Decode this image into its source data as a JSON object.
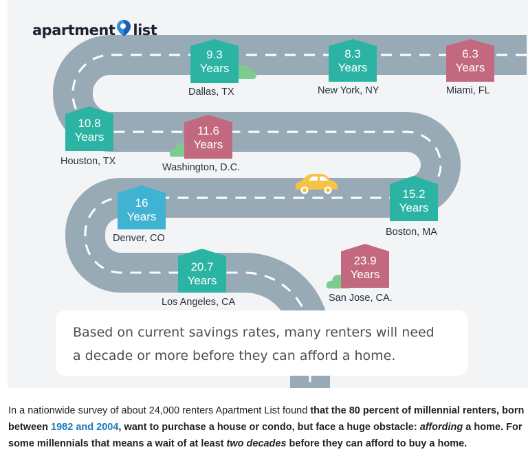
{
  "logo": {
    "left": "apartment",
    "right": "list"
  },
  "colors": {
    "teal": "#2bb3a4",
    "blue": "#40b3d2",
    "pink": "#c2687f",
    "road": "#98aab6",
    "cloud": "#7ccc8f",
    "car": "#f6c344",
    "link": "#1a7bb8"
  },
  "stops": [
    {
      "years": "9.3",
      "unit": "Years",
      "city": "Dallas, TX",
      "color": "teal"
    },
    {
      "years": "8.3",
      "unit": "Years",
      "city": "New York, NY",
      "color": "teal"
    },
    {
      "years": "6.3",
      "unit": "Years",
      "city": "Miami, FL",
      "color": "pink"
    },
    {
      "years": "10.8",
      "unit": "Years",
      "city": "Houston, TX",
      "color": "teal"
    },
    {
      "years": "11.6",
      "unit": "Years",
      "city": "Washington, D.C.",
      "color": "pink"
    },
    {
      "years": "16",
      "unit": "Years",
      "city": "Denver, CO",
      "color": "blue"
    },
    {
      "years": "15.2",
      "unit": "Years",
      "city": "Boston, MA",
      "color": "teal"
    },
    {
      "years": "20.7",
      "unit": "Years",
      "city": "Los Angeles, CA",
      "color": "teal"
    },
    {
      "years": "23.9",
      "unit": "Years",
      "city": "San Jose, CA.",
      "color": "pink"
    }
  ],
  "note": {
    "line1": "Based on current savings rates, many renters will need",
    "line2": "a decade or more before they can afford a home."
  },
  "caption": {
    "t1": "In a nationwide survey of about 24,000 renters Apartment List found ",
    "b1": "that the 80 percent of millennial renters, born between ",
    "link": "1982 and 2004",
    "b2": ", want to purchase a house or condo, but face a huge obstacle: ",
    "i1": "affording",
    "b3": " a home. For some millennials that means a wait of at least ",
    "i2": "two decades",
    "b4": " before they can afford to buy a home."
  }
}
